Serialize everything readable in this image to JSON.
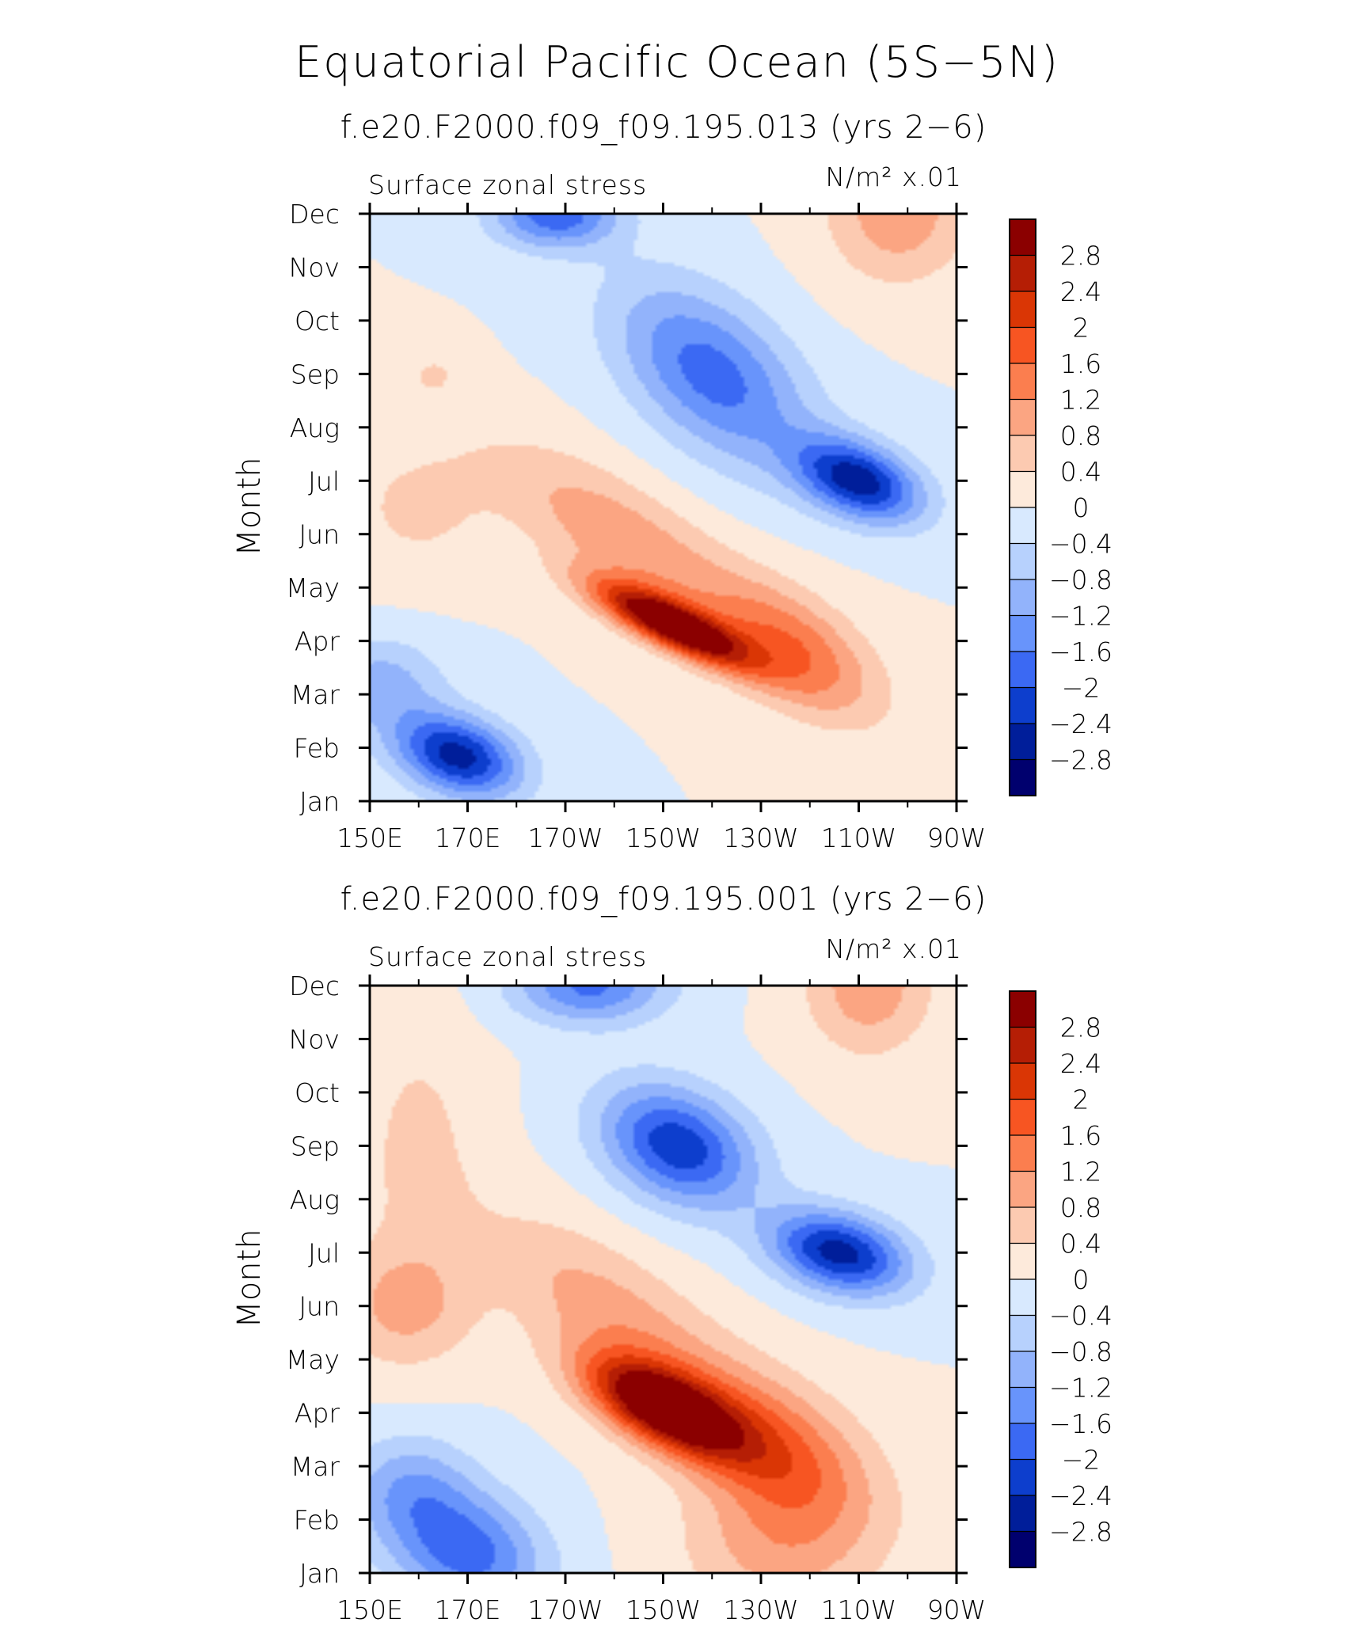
{
  "title": "Equatorial Pacific Ocean (5S−5N)",
  "palette": {
    "levels": [
      "2.8",
      "2.4",
      "2",
      "1.6",
      "1.2",
      "0.8",
      "0.4",
      "0",
      "−0.4",
      "−0.8",
      "−1.2",
      "−1.6",
      "−2",
      "−2.4",
      "−2.8"
    ],
    "colors": [
      "#8B0000",
      "#B51E05",
      "#DA3605",
      "#F75522",
      "#FB7E4F",
      "#FBA582",
      "#FCCAB1",
      "#FDEADB",
      "#D8E9FE",
      "#B7D1FD",
      "#92B3FB",
      "#6894FB",
      "#3B69F3",
      "#0D3ECD",
      "#001E9A",
      "#00006E"
    ]
  },
  "chart_data": [
    {
      "type": "heatmap",
      "title": "f.e20.F2000.f09_f09.195.013 (yrs 2−6)",
      "left_label": "Surface zonal stress",
      "units_label": "N/m² x.01",
      "ylabel": "Month",
      "xlabel": "",
      "x_ticks": [
        "150E",
        "170E",
        "170W",
        "150W",
        "130W",
        "110W",
        "90W"
      ],
      "y_ticks": [
        "Jan",
        "Feb",
        "Mar",
        "Apr",
        "May",
        "Jun",
        "Jul",
        "Aug",
        "Sep",
        "Oct",
        "Nov",
        "Dec"
      ],
      "x_range_deg_east": [
        150,
        270
      ],
      "colorbar_range": [
        -2.8,
        2.8
      ],
      "blobs": [
        {
          "lon": 212,
          "mon": 3.3,
          "sx": 11,
          "sy": 0.55,
          "rho": -0.8,
          "amp": 3.5
        },
        {
          "lon": 237,
          "mon": 2.8,
          "sx": 12,
          "sy": 0.9,
          "rho": -0.55,
          "amp": 1.5
        },
        {
          "lon": 202,
          "mon": 4.9,
          "sx": 18,
          "sy": 1.2,
          "rho": -0.75,
          "amp": 1.1
        },
        {
          "lon": 160,
          "mon": 5.5,
          "sx": 11,
          "sy": 0.9,
          "rho": 0.0,
          "amp": 0.5
        },
        {
          "lon": 163,
          "mon": 8.0,
          "sx": 5,
          "sy": 0.4,
          "rho": 0.0,
          "amp": 0.4
        },
        {
          "lon": 168,
          "mon": 0.85,
          "sx": 9,
          "sy": 0.55,
          "rho": -0.3,
          "amp": -2.6
        },
        {
          "lon": 152,
          "mon": 2.2,
          "sx": 9,
          "sy": 0.6,
          "rho": 0.0,
          "amp": -1.0
        },
        {
          "lon": 250,
          "mon": 6.0,
          "sx": 9,
          "sy": 0.55,
          "rho": -0.4,
          "amp": -2.6
        },
        {
          "lon": 220,
          "mon": 8.0,
          "sx": 14,
          "sy": 1.2,
          "rho": -0.5,
          "amp": -1.8
        },
        {
          "lon": 188,
          "mon": 11.0,
          "sx": 9,
          "sy": 0.45,
          "rho": 0.0,
          "amp": -1.9
        },
        {
          "lon": 258,
          "mon": 11.0,
          "sx": 10,
          "sy": 0.9,
          "rho": 0.0,
          "amp": 1.1
        }
      ]
    },
    {
      "type": "heatmap",
      "title": "f.e20.F2000.f09_f09.195.001 (yrs 2−6)",
      "left_label": "Surface zonal stress",
      "units_label": "N/m² x.01",
      "ylabel": "Month",
      "xlabel": "",
      "x_ticks": [
        "150E",
        "170E",
        "170W",
        "150W",
        "130W",
        "110W",
        "90W"
      ],
      "y_ticks": [
        "Jan",
        "Feb",
        "Mar",
        "Apr",
        "May",
        "Jun",
        "Jul",
        "Aug",
        "Sep",
        "Oct",
        "Nov",
        "Dec"
      ],
      "x_range_deg_east": [
        150,
        270
      ],
      "colorbar_range": [
        -2.8,
        2.8
      ],
      "blobs": [
        {
          "lon": 210,
          "mon": 3.1,
          "sx": 11,
          "sy": 0.65,
          "rho": -0.6,
          "amp": 3.4
        },
        {
          "lon": 232,
          "mon": 2.4,
          "sx": 14,
          "sy": 1.0,
          "rho": -0.45,
          "amp": 1.5
        },
        {
          "lon": 200,
          "mon": 4.8,
          "sx": 18,
          "sy": 1.3,
          "rho": -0.7,
          "amp": 1.0
        },
        {
          "lon": 157,
          "mon": 5.0,
          "sx": 10,
          "sy": 0.8,
          "rho": 0.0,
          "amp": 0.9
        },
        {
          "lon": 160,
          "mon": 8.0,
          "sx": 9,
          "sy": 1.8,
          "rho": 0.0,
          "amp": 0.5
        },
        {
          "lon": 170,
          "mon": 0.4,
          "sx": 11,
          "sy": 0.8,
          "rho": -0.2,
          "amp": -1.8
        },
        {
          "lon": 158,
          "mon": 1.6,
          "sx": 9,
          "sy": 0.7,
          "rho": 0.0,
          "amp": -1.0
        },
        {
          "lon": 246,
          "mon": 6.0,
          "sx": 10,
          "sy": 0.55,
          "rho": -0.3,
          "amp": -2.6
        },
        {
          "lon": 213,
          "mon": 8.0,
          "sx": 11,
          "sy": 0.8,
          "rho": -0.3,
          "amp": -2.3
        },
        {
          "lon": 195,
          "mon": 11.0,
          "sx": 11,
          "sy": 0.5,
          "rho": 0.0,
          "amp": -1.7
        },
        {
          "lon": 252,
          "mon": 11.0,
          "sx": 9,
          "sy": 0.9,
          "rho": 0.0,
          "amp": 1.1
        },
        {
          "lon": 234,
          "mon": 0.6,
          "sx": 14,
          "sy": 1.0,
          "rho": 0.0,
          "amp": 1.0
        }
      ]
    }
  ]
}
